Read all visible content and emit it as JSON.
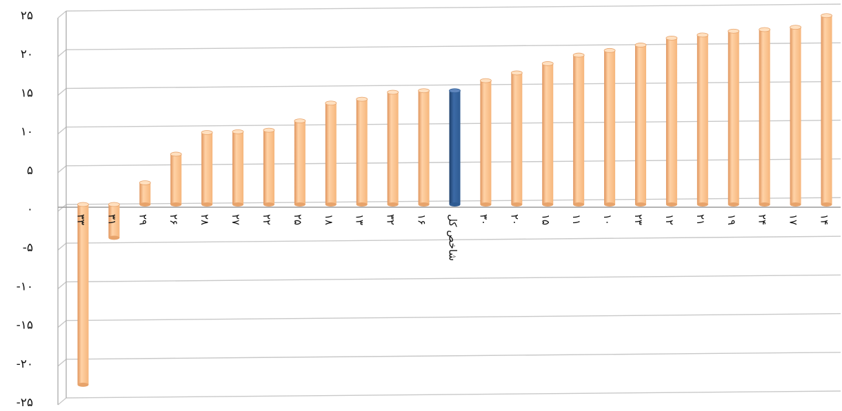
{
  "chart_data": {
    "type": "bar",
    "title": "",
    "xlabel": "",
    "ylabel": "",
    "ylim": [
      -25,
      25
    ],
    "y_ticks": [
      25,
      20,
      15,
      10,
      5,
      0,
      -5,
      -10,
      -15,
      -20,
      -25
    ],
    "y_tick_labels": [
      "۲۵",
      "۲۰",
      "۱۵",
      "۱۰",
      "۵",
      "۰",
      "-۵",
      "-۱۰",
      "-۱۵",
      "-۲۰",
      "-۲۵"
    ],
    "grid": true,
    "legend": "none",
    "bar_color": "#f6b67c",
    "highlight_color": "#2e5b92",
    "categories": [
      "۳۳",
      "۳۱",
      "۲۹",
      "۲۶",
      "۲۸",
      "۲۷",
      "۲۲",
      "۲۵",
      "۱۸",
      "۱۳",
      "۳۲",
      "۱۶",
      "شاخص کل",
      "۳۰",
      "۲۰",
      "۱۵",
      "۱۱",
      "۱۰",
      "۲۳",
      "۱۲",
      "۲۱",
      "۱۹",
      "۲۴",
      "۱۷",
      "۱۴"
    ],
    "values": [
      -23.3,
      -4.3,
      2.8,
      6.5,
      9.3,
      9.4,
      9.6,
      10.8,
      13.1,
      13.6,
      14.5,
      14.7,
      14.7,
      16.0,
      17.0,
      18.2,
      19.3,
      19.9,
      20.6,
      21.5,
      21.9,
      22.4,
      22.6,
      22.9,
      24.4
    ],
    "highlight_index": 12
  }
}
